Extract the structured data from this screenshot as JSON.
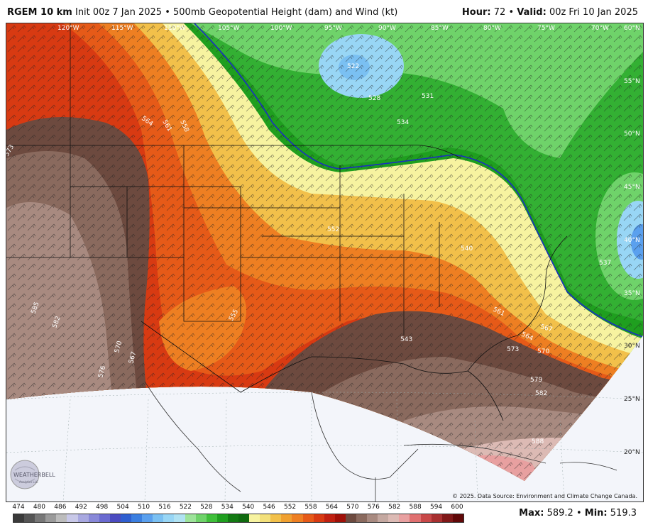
{
  "header": {
    "model": "RGEM 10 km",
    "init": "Init 00z 7 Jan 2025",
    "bullet": "•",
    "product": "500mb Geopotential Height (dam) and Wind (kt)",
    "hour_label": "Hour:",
    "hour_value": "72",
    "valid_label": "Valid:",
    "valid_value": "00z Fri 10 Jan 2025"
  },
  "longitudes": [
    "120°W",
    "115°W",
    "110°W",
    "105°W",
    "100°W",
    "95°W",
    "90°W",
    "85°W",
    "80°W",
    "75°W",
    "70°W"
  ],
  "latitudes": [
    "60°N",
    "55°N",
    "50°N",
    "45°N",
    "40°N",
    "35°N",
    "30°N",
    "25°N",
    "20°N"
  ],
  "contour_labels": [
    "522",
    "534",
    "564",
    "561",
    "558",
    "573",
    "552",
    "555",
    "585",
    "582",
    "576",
    "570",
    "567",
    "561",
    "564",
    "567",
    "570",
    "573",
    "579",
    "582",
    "588",
    "531",
    "528",
    "537",
    "540",
    "543"
  ],
  "copyright": "© 2025. Data Source: Environment and Climate Change Canada.",
  "logo_text": "WEATHERBELL",
  "logo_sub": "Analytics LLC",
  "colorbar": {
    "labels": [
      "474",
      "480",
      "486",
      "492",
      "498",
      "504",
      "510",
      "516",
      "522",
      "528",
      "534",
      "540",
      "546",
      "552",
      "558",
      "564",
      "570",
      "576",
      "582",
      "588",
      "594",
      "600"
    ],
    "colors": [
      "#3a3a3a",
      "#555",
      "#777",
      "#9a9a9a",
      "#bcbcbc",
      "#c8c8e8",
      "#a8a8e0",
      "#8888d8",
      "#6a6ad0",
      "#4b4bc0",
      "#2f5fd0",
      "#3b7fe0",
      "#5aa0ee",
      "#7ac0f2",
      "#98d6f5",
      "#b0e2f2",
      "#9de39a",
      "#6fd36a",
      "#3fbf3a",
      "#1f9f1f",
      "#137a13",
      "#0f6a0f",
      "#f7f3a0",
      "#f3e07a",
      "#f2c04a",
      "#f0a030",
      "#ee7f22",
      "#e65a18",
      "#d83a12",
      "#c02010",
      "#a01008",
      "#6d4a3f",
      "#8a6a5e",
      "#a88a80",
      "#c4a8a0",
      "#dcbab4",
      "#e8a0a0",
      "#e07070",
      "#c84848",
      "#a83030",
      "#801818",
      "#600808"
    ]
  },
  "stats": {
    "max_label": "Max:",
    "max_value": "589.2",
    "sep": "•",
    "min_label": "Min:",
    "min_value": "519.3"
  }
}
